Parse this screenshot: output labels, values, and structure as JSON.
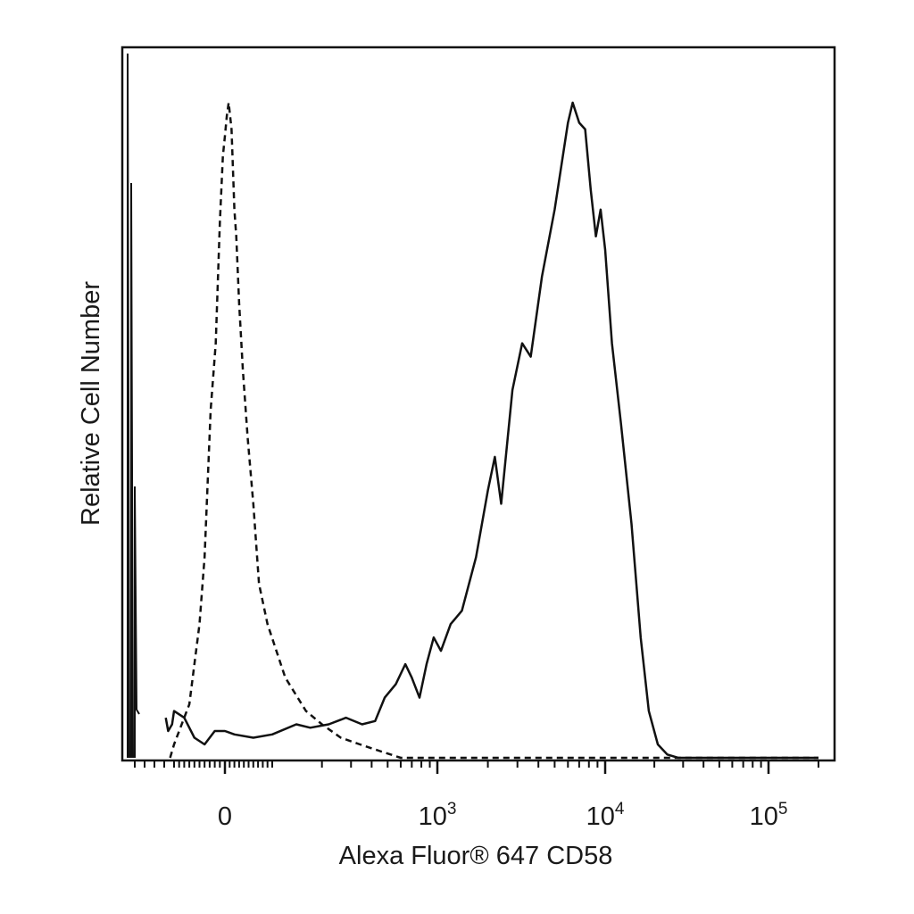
{
  "chart_data": {
    "type": "line",
    "title": "",
    "xlabel": "Alexa Fluor® 647 CD58",
    "ylabel": "Relative Cell Number",
    "x_scale": "biexponential",
    "xlim": [
      -600,
      250000
    ],
    "ylim": [
      0,
      1
    ],
    "grid": false,
    "legend": "none",
    "x_tick_labels": [
      {
        "value": 0,
        "base": "0",
        "exp": ""
      },
      {
        "value": 1000,
        "base": "10",
        "exp": "3"
      },
      {
        "value": 10000,
        "base": "10",
        "exp": "4"
      },
      {
        "value": 100000,
        "base": "10",
        "exp": "5"
      }
    ],
    "series": [
      {
        "style": "dashed",
        "points": [
          [
            -140,
            0.0
          ],
          [
            -100,
            0.02
          ],
          [
            -70,
            0.08
          ],
          [
            -50,
            0.2
          ],
          [
            -40,
            0.3
          ],
          [
            -28,
            0.52
          ],
          [
            -18,
            0.62
          ],
          [
            -10,
            0.8
          ],
          [
            -4,
            0.9
          ],
          [
            0,
            0.93
          ],
          [
            4,
            0.96
          ],
          [
            8,
            0.98
          ],
          [
            14,
            0.94
          ],
          [
            20,
            0.82
          ],
          [
            24,
            0.78
          ],
          [
            30,
            0.68
          ],
          [
            38,
            0.58
          ],
          [
            48,
            0.48
          ],
          [
            60,
            0.38
          ],
          [
            72,
            0.26
          ],
          [
            90,
            0.2
          ],
          [
            120,
            0.12
          ],
          [
            160,
            0.07
          ],
          [
            200,
            0.05
          ],
          [
            260,
            0.03
          ],
          [
            340,
            0.02
          ],
          [
            450,
            0.01
          ],
          [
            600,
            0.0
          ],
          [
            800,
            0.0
          ],
          [
            1000,
            0.0
          ],
          [
            10000,
            0.0
          ],
          [
            100000,
            0.0
          ],
          [
            200000,
            0.0
          ]
        ]
      },
      {
        "style": "solid",
        "points": [
          [
            -185,
            0.06
          ],
          [
            -160,
            0.04
          ],
          [
            -120,
            0.05
          ],
          [
            -100,
            0.07
          ],
          [
            -80,
            0.06
          ],
          [
            -60,
            0.03
          ],
          [
            -40,
            0.02
          ],
          [
            -20,
            0.04
          ],
          [
            0,
            0.04
          ],
          [
            20,
            0.035
          ],
          [
            60,
            0.03
          ],
          [
            100,
            0.035
          ],
          [
            140,
            0.05
          ],
          [
            170,
            0.045
          ],
          [
            220,
            0.05
          ],
          [
            280,
            0.06
          ],
          [
            350,
            0.05
          ],
          [
            420,
            0.055
          ],
          [
            480,
            0.09
          ],
          [
            560,
            0.11
          ],
          [
            640,
            0.14
          ],
          [
            700,
            0.12
          ],
          [
            780,
            0.09
          ],
          [
            860,
            0.14
          ],
          [
            950,
            0.18
          ],
          [
            1050,
            0.16
          ],
          [
            1200,
            0.2
          ],
          [
            1400,
            0.22
          ],
          [
            1700,
            0.3
          ],
          [
            2000,
            0.4
          ],
          [
            2200,
            0.45
          ],
          [
            2400,
            0.38
          ],
          [
            2800,
            0.55
          ],
          [
            3200,
            0.62
          ],
          [
            3600,
            0.6
          ],
          [
            4200,
            0.72
          ],
          [
            5000,
            0.82
          ],
          [
            6000,
            0.95
          ],
          [
            6400,
            0.98
          ],
          [
            7000,
            0.95
          ],
          [
            7600,
            0.94
          ],
          [
            8200,
            0.85
          ],
          [
            8800,
            0.78
          ],
          [
            9400,
            0.82
          ],
          [
            10000,
            0.76
          ],
          [
            11000,
            0.62
          ],
          [
            12500,
            0.5
          ],
          [
            14500,
            0.35
          ],
          [
            16500,
            0.18
          ],
          [
            18500,
            0.07
          ],
          [
            21000,
            0.02
          ],
          [
            24000,
            0.005
          ],
          [
            28000,
            0.0
          ],
          [
            40000,
            0.0
          ],
          [
            100000,
            0.0
          ],
          [
            200000,
            0.0
          ]
        ]
      }
    ]
  }
}
